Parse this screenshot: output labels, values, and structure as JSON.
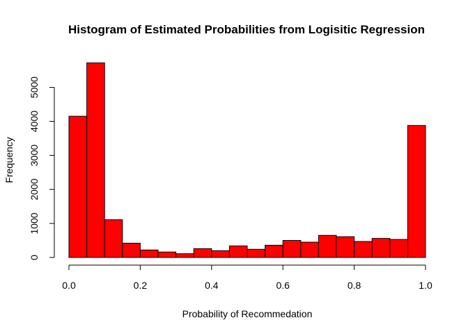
{
  "chart_data": {
    "type": "bar",
    "title": "Histogram of Estimated Probabilities from Logisitic Regression",
    "xlabel": "Probability of Recommedation",
    "ylabel": "Frequency",
    "bin_edges": [
      0.0,
      0.05,
      0.1,
      0.15,
      0.2,
      0.25,
      0.3,
      0.35,
      0.4,
      0.45,
      0.5,
      0.55,
      0.6,
      0.65,
      0.7,
      0.75,
      0.8,
      0.85,
      0.9,
      0.95,
      1.0
    ],
    "values": [
      4150,
      5720,
      1110,
      420,
      220,
      160,
      110,
      260,
      200,
      340,
      240,
      360,
      500,
      450,
      650,
      610,
      470,
      560,
      530,
      3880
    ],
    "xlim": [
      0.0,
      1.0
    ],
    "ylim": [
      0,
      6000
    ],
    "x_ticks": [
      0.0,
      0.2,
      0.4,
      0.6,
      0.8,
      1.0
    ],
    "x_tick_labels": [
      "0.0",
      "0.2",
      "0.4",
      "0.6",
      "0.8",
      "1.0"
    ],
    "y_ticks": [
      0,
      1000,
      2000,
      3000,
      4000,
      5000
    ],
    "y_tick_labels": [
      "0",
      "1000",
      "2000",
      "3000",
      "4000",
      "5000"
    ],
    "bar_color": "#ff0000",
    "edge_color": "#000000",
    "grid": false
  }
}
